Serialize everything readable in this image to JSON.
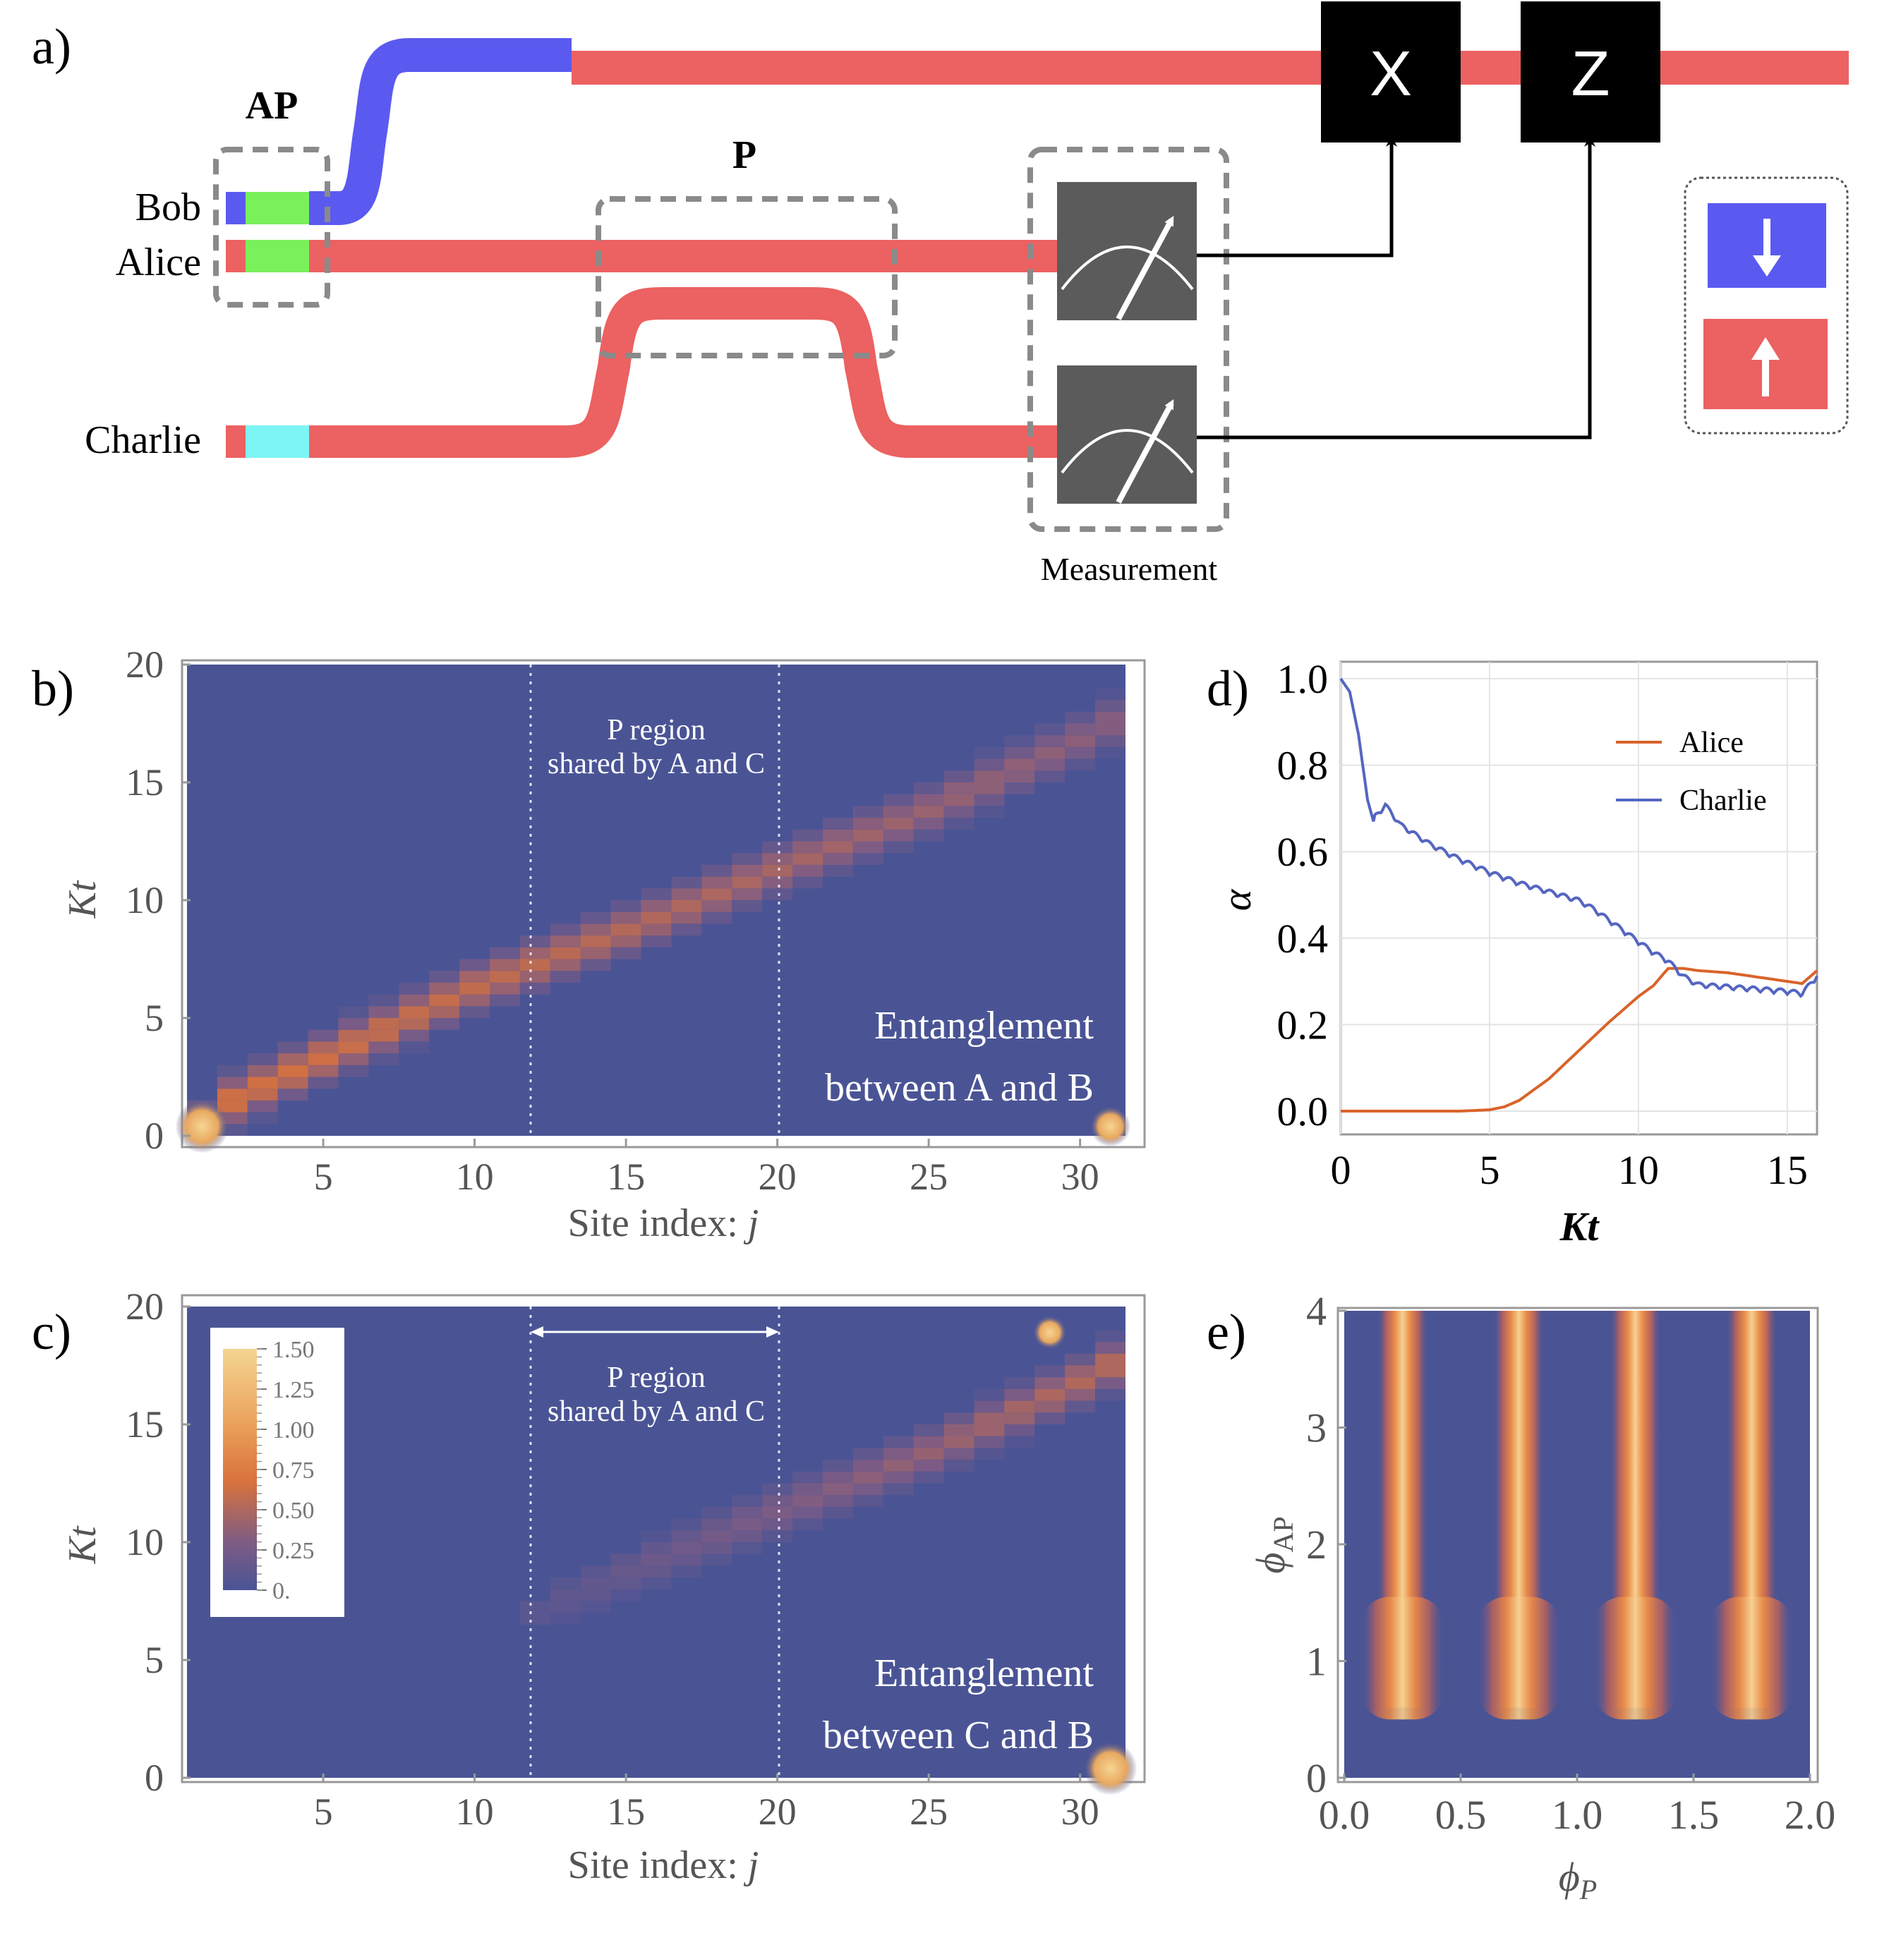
{
  "colors": {
    "spin_down": "#5b5af0",
    "spin_up": "#ec6161",
    "green": "#7af05a",
    "cyan": "#7df5f5",
    "box_dark": "#5b5b5b",
    "heat_bg": "#4a5495",
    "alice_line": "#d9632a",
    "charlie_line": "#5566c0"
  },
  "panel_a": {
    "label": "a)",
    "ap_label": "AP",
    "p_label": "P",
    "bob": "Bob",
    "alice": "Alice",
    "charlie": "Charlie",
    "gate_x": "X",
    "gate_z": "Z",
    "measurement": "Measurement",
    "legend_icons": [
      "arrow-down-icon",
      "arrow-up-icon"
    ]
  },
  "panel_b": {
    "label": "b)",
    "p_region_line1": "P region",
    "p_region_line2": "shared by A and C",
    "annotation_line1": "Entanglement",
    "annotation_line2": "between A and B",
    "xlabel": "Site index: ",
    "xlabel_var": "j",
    "ylabel": "Kt"
  },
  "panel_c": {
    "label": "c)",
    "p_region_line1": "P region",
    "p_region_line2": "shared by A and C",
    "annotation_line1": "Entanglement",
    "annotation_line2": "between C and B",
    "xlabel": "Site index: ",
    "xlabel_var": "j",
    "ylabel": "Kt",
    "colorbar_ticks": [
      "1.50",
      "1.25",
      "1.00",
      "0.75",
      "0.50",
      "0.25",
      "0."
    ]
  },
  "panel_d": {
    "label": "d)",
    "ylabel": "α",
    "xlabel": "Kt",
    "legend": [
      "Alice",
      "Charlie"
    ]
  },
  "panel_e": {
    "label": "e)",
    "ylabel_main": "ϕ",
    "ylabel_sub": "AP",
    "xlabel_main": "ϕ",
    "xlabel_sub": "P"
  },
  "chart_data": [
    {
      "id": "b",
      "type": "heatmap",
      "title": "Entanglement between A and B",
      "xlabel": "Site index: j",
      "ylabel": "Kt",
      "xlim": [
        1,
        31
      ],
      "ylim": [
        0,
        20
      ],
      "xticks": [
        5,
        10,
        15,
        20,
        25,
        30
      ],
      "yticks": [
        0,
        5,
        10,
        15,
        20
      ],
      "p_region": [
        12,
        20
      ],
      "ridge": [
        [
          1,
          0.2
        ],
        [
          2,
          1.5
        ],
        [
          5,
          3.3
        ],
        [
          10,
          6.3
        ],
        [
          15,
          8.7
        ],
        [
          20,
          11.3
        ],
        [
          25,
          13.8
        ],
        [
          30,
          16.8
        ],
        [
          31,
          17.5
        ]
      ],
      "ridge_peak": [
        0.7,
        0.35
      ],
      "corner_hotspots": [
        [
          1,
          0,
          1.5
        ],
        [
          31,
          0,
          0.8
        ]
      ]
    },
    {
      "id": "c",
      "type": "heatmap",
      "title": "Entanglement between C and B",
      "xlabel": "Site index: j",
      "ylabel": "Kt",
      "xlim": [
        1,
        31
      ],
      "ylim": [
        0,
        20
      ],
      "xticks": [
        5,
        10,
        15,
        20,
        25,
        30
      ],
      "yticks": [
        0,
        5,
        10,
        15,
        20
      ],
      "p_region": [
        12,
        20
      ],
      "colorbar": [
        0,
        1.5
      ],
      "colorbar_ticks": [
        0,
        0.25,
        0.5,
        0.75,
        1.0,
        1.25,
        1.5
      ],
      "ridge": [
        [
          12,
          7.0
        ],
        [
          15,
          8.7
        ],
        [
          20,
          11.3
        ],
        [
          25,
          13.8
        ],
        [
          30,
          16.8
        ],
        [
          31,
          17.5
        ]
      ],
      "ridge_peak": [
        0.1,
        0.55
      ],
      "corner_hotspots": [
        [
          31,
          0,
          1.4
        ],
        [
          29,
          18.5,
          0.6
        ]
      ]
    },
    {
      "id": "d",
      "type": "line",
      "xlabel": "Kt",
      "ylabel": "α",
      "xlim": [
        0,
        16
      ],
      "ylim": [
        0,
        1.0
      ],
      "xticks": [
        0,
        5,
        10,
        15
      ],
      "yticks": [
        0.0,
        0.2,
        0.4,
        0.6,
        0.8,
        1.0
      ],
      "legend": "top-right",
      "series": [
        {
          "name": "Alice",
          "x": [
            0,
            4,
            5,
            5.5,
            6,
            7,
            8,
            9,
            10,
            10.5,
            11,
            11.5,
            12,
            13,
            14,
            15,
            15.5,
            16
          ],
          "y": [
            0,
            0,
            0.003,
            0.01,
            0.025,
            0.075,
            0.14,
            0.205,
            0.265,
            0.29,
            0.33,
            0.33,
            0.325,
            0.32,
            0.31,
            0.3,
            0.295,
            0.325
          ]
        },
        {
          "name": "Charlie",
          "x": [
            0,
            0.3,
            0.6,
            0.9,
            1.1,
            1.5,
            2,
            3,
            4,
            5,
            6,
            7,
            8,
            8.5,
            9,
            9.5,
            10,
            10.5,
            11,
            11.5,
            12,
            13,
            14,
            15,
            15.5,
            16
          ],
          "y": [
            1.0,
            0.97,
            0.87,
            0.72,
            0.67,
            0.7,
            0.655,
            0.61,
            0.575,
            0.545,
            0.52,
            0.5,
            0.48,
            0.46,
            0.435,
            0.41,
            0.385,
            0.36,
            0.34,
            0.305,
            0.285,
            0.28,
            0.275,
            0.27,
            0.265,
            0.305
          ]
        }
      ]
    },
    {
      "id": "e",
      "type": "heatmap",
      "xlabel": "ϕ_P",
      "ylabel": "ϕ_AP",
      "xlim": [
        0,
        2
      ],
      "ylim": [
        0,
        4
      ],
      "xticks": [
        0.0,
        0.5,
        1.0,
        1.5,
        2.0
      ],
      "yticks": [
        0,
        1,
        2,
        3,
        4
      ],
      "stripe_centers": [
        0.25,
        0.75,
        1.25,
        1.75
      ],
      "stripe_onset": 1.55,
      "colorbar": [
        0,
        1.5
      ]
    }
  ]
}
